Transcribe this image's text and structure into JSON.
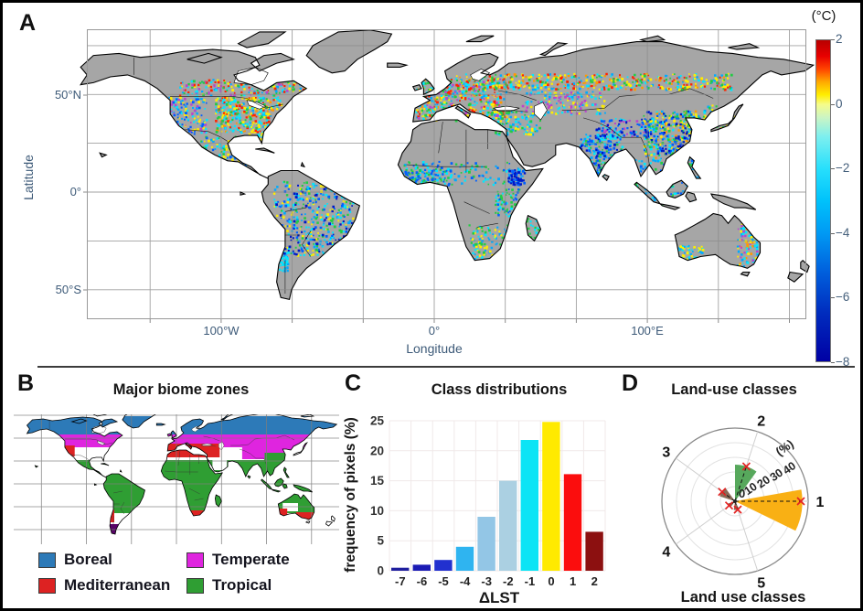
{
  "figure": {
    "background": "#ffffff",
    "border_color": "#000000"
  },
  "panel_a": {
    "label": "A",
    "y_axis": {
      "label": "Latitude",
      "tick_labels": [
        "50°N",
        "0°",
        "50°S"
      ],
      "tick_y_local": [
        72,
        178,
        285
      ]
    },
    "x_axis": {
      "label": "Longitude",
      "tick_labels": [
        "100°W",
        "0°",
        "100°E"
      ],
      "tick_x_local": [
        147,
        380,
        613
      ]
    },
    "colorbar": {
      "title": "(°C)",
      "min": -8,
      "max": 2,
      "tick_labels": [
        "2",
        "0",
        "−2",
        "−4",
        "−6",
        "−8"
      ],
      "tick_values": [
        2,
        0,
        -2,
        -4,
        -6,
        -8
      ],
      "gradient_stops": [
        [
          0,
          "#b80000"
        ],
        [
          0.05,
          "#e80000"
        ],
        [
          0.09,
          "#ff4400"
        ],
        [
          0.13,
          "#ffaa00"
        ],
        [
          0.17,
          "#ffee00"
        ],
        [
          0.2,
          "#f6fc8a"
        ],
        [
          0.24,
          "#ccf5c4"
        ],
        [
          0.3,
          "#7defef"
        ],
        [
          0.4,
          "#27dffc"
        ],
        [
          0.5,
          "#00c2fb"
        ],
        [
          0.6,
          "#009af4"
        ],
        [
          0.72,
          "#0060dd"
        ],
        [
          0.85,
          "#002cbe"
        ],
        [
          1,
          "#0000a4"
        ]
      ]
    }
  },
  "panel_b": {
    "label": "B",
    "title": "Major biome zones",
    "legend": [
      {
        "label": "Boreal",
        "color": "#2d7ab8"
      },
      {
        "label": "Mediterranean",
        "color": "#dd2222"
      },
      {
        "label": "Temperate",
        "color": "#df25df"
      },
      {
        "label": "Tropical",
        "color": "#2f9e33"
      }
    ]
  },
  "panel_c": {
    "label": "C"
  },
  "panel_d": {
    "label": "D"
  },
  "chart_data": [
    {
      "id": "delta_lst_map",
      "type": "map",
      "variable": "ΔLST (°C)",
      "land_color": "#a6a6a6",
      "coast_color": "#000000",
      "grid_color": "#8a8a8a",
      "value_range": [
        -8,
        2
      ],
      "scatter_palette": {
        "deepblue": "#0018c8",
        "blue": "#0060ff",
        "sky": "#00aaff",
        "cyan": "#00e8ff",
        "green": "#22cc44",
        "yellow": "#ffee00",
        "orange": "#ff9900",
        "red": "#ff2200",
        "magenta": "#bb44cc"
      },
      "scatter_regions": [
        [
          -103,
          -72,
          31,
          49,
          400,
          [
            "cyan",
            "cyan",
            "sky",
            "yellow",
            "yellow",
            "red",
            "orange",
            "green",
            "cyan"
          ]
        ],
        [
          -88,
          -80,
          25,
          31,
          40,
          [
            "cyan",
            "green",
            "yellow"
          ]
        ],
        [
          -125,
          -107,
          30,
          49,
          150,
          [
            "cyan",
            "sky",
            "blue",
            "yellow",
            "magenta"
          ]
        ],
        [
          -120,
          -58,
          50,
          58,
          230,
          [
            "cyan",
            "yellow",
            "red",
            "green",
            "sky",
            "magenta"
          ]
        ],
        [
          -112,
          -84,
          12,
          29,
          190,
          [
            "cyan",
            "sky",
            "blue",
            "yellow",
            "green"
          ]
        ],
        [
          -76,
          -38,
          -32,
          6,
          470,
          [
            "blue",
            "cyan",
            "sky",
            "yellow",
            "green",
            "deepblue",
            "cyan"
          ]
        ],
        [
          -73,
          -69,
          -40,
          -30,
          40,
          [
            "cyan",
            "sky"
          ]
        ],
        [
          -9,
          34,
          37,
          59,
          480,
          [
            "cyan",
            "cyan",
            "yellow",
            "sky",
            "green",
            "orange",
            "red",
            "magenta"
          ]
        ],
        [
          10,
          140,
          53,
          61,
          470,
          [
            "yellow",
            "cyan",
            "orange",
            "red",
            "green",
            "sky",
            "yellow"
          ]
        ],
        [
          40,
          80,
          40,
          52,
          150,
          [
            "cyan",
            "magenta",
            "sky",
            "yellow"
          ]
        ],
        [
          75,
          100,
          28,
          38,
          110,
          [
            "magenta",
            "blue",
            "cyan",
            "deepblue"
          ]
        ],
        [
          68,
          88,
          8,
          30,
          300,
          [
            "blue",
            "deepblue",
            "cyan",
            "sky",
            "green"
          ]
        ],
        [
          98,
          125,
          18,
          42,
          480,
          [
            "cyan",
            "blue",
            "sky",
            "yellow",
            "green",
            "deepblue",
            "orange"
          ]
        ],
        [
          92,
          127,
          -9,
          18,
          240,
          [
            "cyan",
            "sky",
            "green",
            "blue"
          ]
        ],
        [
          126,
          142,
          33,
          45,
          90,
          [
            "cyan",
            "sky",
            "green",
            "yellow"
          ]
        ],
        [
          -16,
          40,
          4,
          16,
          150,
          [
            "cyan",
            "blue",
            "green",
            "sky"
          ]
        ],
        [
          34,
          42,
          4,
          12,
          80,
          [
            "blue",
            "deepblue",
            "sky"
          ]
        ],
        [
          28,
          40,
          -12,
          2,
          80,
          [
            "blue",
            "cyan",
            "green"
          ]
        ],
        [
          16,
          34,
          -34,
          -16,
          100,
          [
            "cyan",
            "sky",
            "green",
            "yellow"
          ]
        ],
        [
          -16,
          8,
          4,
          12,
          80,
          [
            "cyan",
            "green",
            "blue"
          ]
        ],
        [
          142,
          153,
          -38,
          -16,
          120,
          [
            "cyan",
            "yellow",
            "sky",
            "magenta",
            "orange"
          ]
        ],
        [
          114,
          126,
          -35,
          -27,
          60,
          [
            "cyan",
            "yellow",
            "sky"
          ]
        ],
        [
          43,
          50,
          -25,
          -13,
          40,
          [
            "cyan",
            "green"
          ]
        ],
        [
          26,
          50,
          30,
          42,
          130,
          [
            "cyan",
            "yellow",
            "sky",
            "green"
          ]
        ]
      ]
    },
    {
      "id": "biome_map",
      "type": "map",
      "title": "Major biome zones",
      "zones": [
        {
          "name": "temperate",
          "color": "#df25df",
          "rects": [
            [
              -180,
              180,
              40,
              54
            ],
            [
              73,
              103,
              27,
              40
            ],
            [
              100,
              130,
              33,
              45
            ]
          ]
        },
        {
          "name": "tropical",
          "color": "#2f9e33",
          "rects": [
            [
              -180,
              180,
              -32,
              26
            ],
            [
              98,
              126,
              20,
              34
            ]
          ]
        },
        {
          "name": "arid",
          "color": "#ffffff",
          "rects": [
            [
              40,
              56,
              15,
              28
            ],
            [
              118,
              135,
              -30,
              -21
            ],
            [
              -70,
              -62,
              -44,
              -33
            ]
          ]
        },
        {
          "name": "boreal",
          "color": "#2d7ab8",
          "rects": [
            [
              -180,
              180,
              54,
              74
            ]
          ]
        },
        {
          "name": "mediterranean",
          "color": "#dd2222",
          "rects": [
            [
              -11,
              48,
              29,
              44
            ],
            [
              -125,
              -113,
              30,
              42
            ],
            [
              -75,
              -69,
              -42,
              -28
            ],
            [
              15,
              31,
              -36,
              -29
            ],
            [
              112,
              123,
              -36,
              -27
            ],
            [
              133,
              152,
              -40,
              -31
            ]
          ]
        },
        {
          "name": "patagonia",
          "color": "#5a006a",
          "rects": [
            [
              -76,
              -64,
              -56,
              -44
            ]
          ]
        }
      ]
    },
    {
      "id": "class_distributions",
      "type": "bar",
      "title": "Class distributions",
      "xlabel": "ΔLST",
      "ylabel": "frequency of pixels (%)",
      "categories": [
        "-7",
        "-6",
        "-5",
        "-4",
        "-3",
        "-2",
        "-1",
        "0",
        "1",
        "2"
      ],
      "values": [
        0.5,
        1.0,
        1.8,
        4.0,
        9.0,
        15.0,
        21.8,
        24.8,
        16.1,
        6.5
      ],
      "bar_colors": [
        "#1f1f9e",
        "#1b1bb4",
        "#2230cf",
        "#2fb4f0",
        "#93c6e6",
        "#abd0e2",
        "#0ce4f5",
        "#ffea00",
        "#fb0d0d",
        "#8c1010"
      ],
      "ylim": [
        0,
        25
      ],
      "yticks": [
        0,
        5,
        10,
        15,
        20,
        25
      ],
      "grid": true
    },
    {
      "id": "land_use_classes",
      "type": "polar_bar",
      "title": "Land-use classes",
      "xlabel": "Land use classes",
      "categories": [
        "1",
        "2",
        "3",
        "4",
        "5"
      ],
      "values": [
        46,
        25,
        11,
        5,
        6
      ],
      "marker_values": [
        45,
        25,
        11,
        5,
        6
      ],
      "wedge_colors": [
        "#f9b014",
        "#57a85c",
        "#8a6b57",
        "#8a6b57",
        "#8a6b57"
      ],
      "angles_deg": [
        0,
        72,
        144,
        216,
        288
      ],
      "wedge_offsets_deg": [
        -8,
        0,
        0,
        0,
        -8
      ],
      "wedge_half_width_deg": 18,
      "radial_ticks": [
        10,
        20,
        30,
        40
      ],
      "radial_unit": "(%)",
      "rmax": 50,
      "origin_label": "0",
      "marker": "x",
      "marker_color": "#e32222"
    }
  ]
}
